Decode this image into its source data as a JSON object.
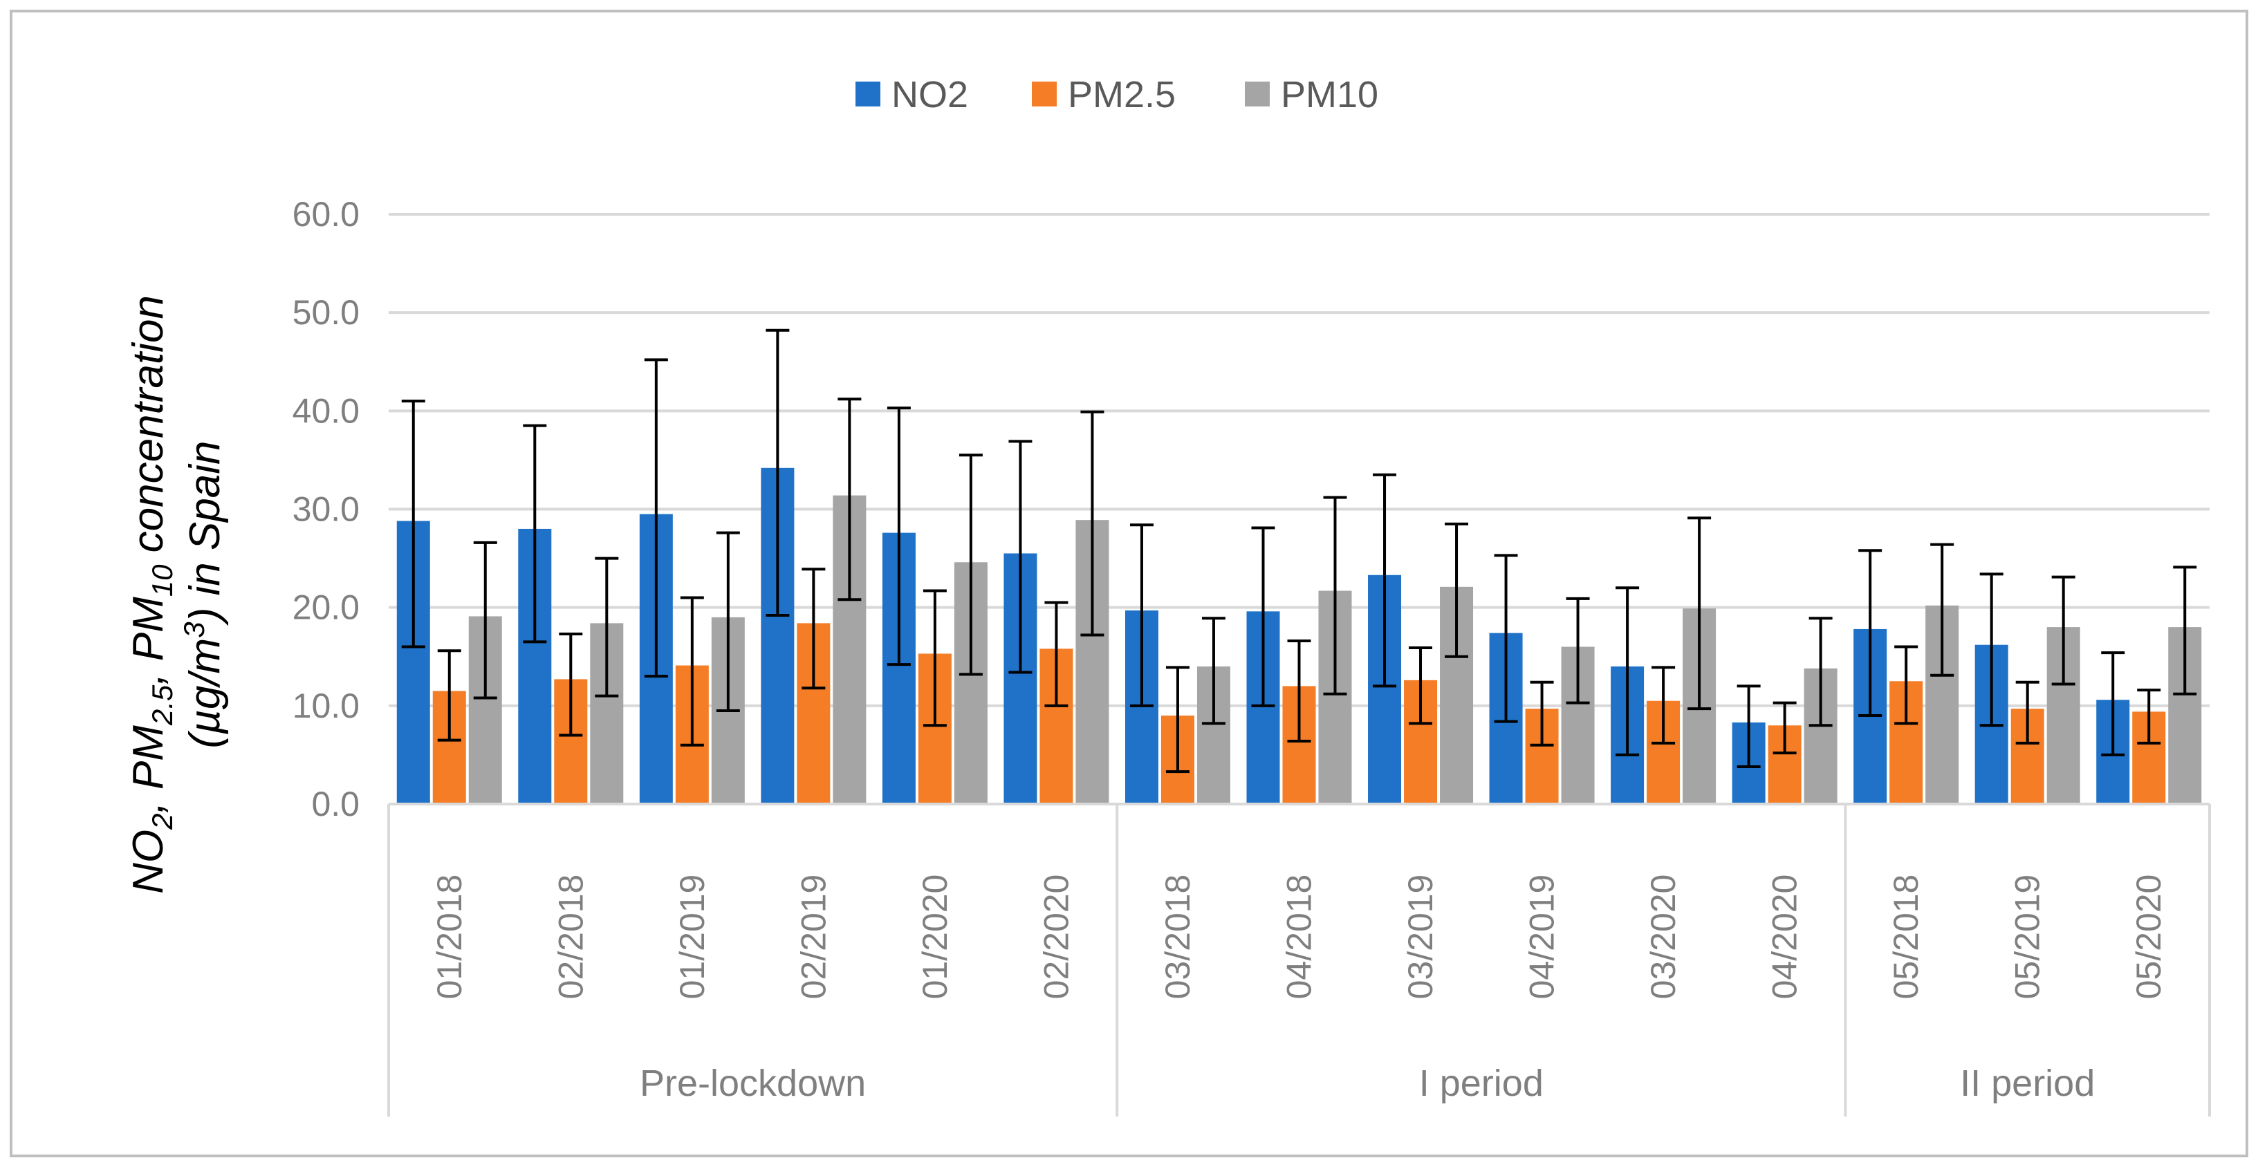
{
  "chart_data": {
    "type": "bar",
    "title": "",
    "xlabel": "",
    "ylabel_line1": "NO2, PM2.5, PM10 concentration",
    "ylabel_line2": "(µg/m3) in Spain",
    "ylabel_parts": {
      "no": "NO",
      "no_sub": "2",
      "sep1": ", PM",
      "pm25_sub": "2.5",
      "sep2": ", PM",
      "pm10_sub": "10",
      "concentration": " concentration",
      "unit_open": "(µg/m",
      "unit_sup": "3",
      "unit_close": ") in Spain"
    },
    "ylim": [
      0,
      60
    ],
    "yticks": [
      "0.0",
      "10.0",
      "20.0",
      "30.0",
      "40.0",
      "50.0",
      "60.0"
    ],
    "grid": true,
    "legend_position": "top-center",
    "categories": [
      "01/2018",
      "02/2018",
      "01/2019",
      "02/2019",
      "01/2020",
      "02/2020",
      "03/2018",
      "04/2018",
      "03/2019",
      "04/2019",
      "03/2020",
      "04/2020",
      "05/2018",
      "05/2019",
      "05/2020"
    ],
    "groups": [
      {
        "label": "Pre-lockdown",
        "count": 6
      },
      {
        "label": "I period",
        "count": 6
      },
      {
        "label": "II period",
        "count": 3
      }
    ],
    "series": [
      {
        "name": "NO2",
        "color": "#1f72c8",
        "values": [
          28.8,
          28.0,
          29.5,
          34.2,
          27.6,
          25.5,
          19.7,
          19.6,
          23.3,
          17.4,
          14.0,
          8.3,
          17.8,
          16.2,
          10.6
        ],
        "err_low": [
          16.0,
          16.5,
          13.0,
          19.2,
          14.2,
          13.4,
          10.0,
          10.0,
          12.0,
          8.4,
          5.0,
          3.8,
          9.0,
          8.0,
          5.0
        ],
        "err_high": [
          41.0,
          38.5,
          45.2,
          48.2,
          40.3,
          36.9,
          28.4,
          28.1,
          33.5,
          25.3,
          22.0,
          12.0,
          25.8,
          23.4,
          15.4
        ]
      },
      {
        "name": "PM2.5",
        "color": "#f47d26",
        "values": [
          11.5,
          12.7,
          14.1,
          18.4,
          15.3,
          15.8,
          9.0,
          12.0,
          12.6,
          9.7,
          10.5,
          8.0,
          12.5,
          9.7,
          9.4
        ],
        "err_low": [
          6.5,
          7.0,
          6.0,
          11.8,
          8.0,
          10.0,
          3.3,
          6.4,
          8.2,
          6.0,
          6.2,
          5.2,
          8.2,
          6.2,
          6.2
        ],
        "err_high": [
          15.6,
          17.3,
          21.0,
          23.9,
          21.7,
          20.5,
          13.9,
          16.6,
          15.9,
          12.4,
          13.9,
          10.3,
          16.0,
          12.4,
          11.6
        ]
      },
      {
        "name": "PM10",
        "color": "#a5a5a5",
        "values": [
          19.1,
          18.4,
          19.0,
          31.4,
          24.6,
          28.9,
          14.0,
          21.7,
          22.1,
          16.0,
          19.9,
          13.8,
          20.2,
          18.0,
          18.0
        ],
        "err_low": [
          10.8,
          11.0,
          9.5,
          20.8,
          13.2,
          17.2,
          8.2,
          11.2,
          15.0,
          10.3,
          9.7,
          8.0,
          13.1,
          12.2,
          11.2
        ],
        "err_high": [
          26.6,
          25.0,
          27.6,
          41.2,
          35.5,
          39.9,
          18.9,
          31.2,
          28.5,
          20.9,
          29.1,
          18.9,
          26.4,
          23.1,
          24.1
        ]
      }
    ]
  }
}
